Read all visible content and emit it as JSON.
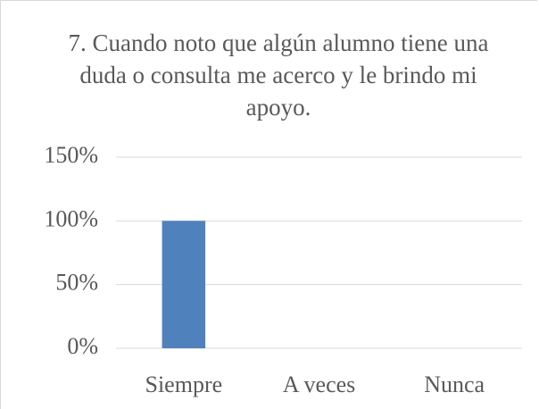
{
  "chart_data": {
    "type": "bar",
    "title": "7. Cuando noto que algún alumno tiene una duda o consulta me acerco y le brindo mi apoyo.",
    "categories": [
      "Siempre",
      "A veces",
      "Nunca"
    ],
    "values": [
      100,
      0,
      0
    ],
    "color": "#4f81bd",
    "ylim": [
      0,
      150
    ],
    "yticks": [
      {
        "value": 0,
        "label": "0%"
      },
      {
        "value": 50,
        "label": "50%"
      },
      {
        "value": 100,
        "label": "100%"
      },
      {
        "value": 150,
        "label": "150%"
      }
    ],
    "grid": true
  }
}
